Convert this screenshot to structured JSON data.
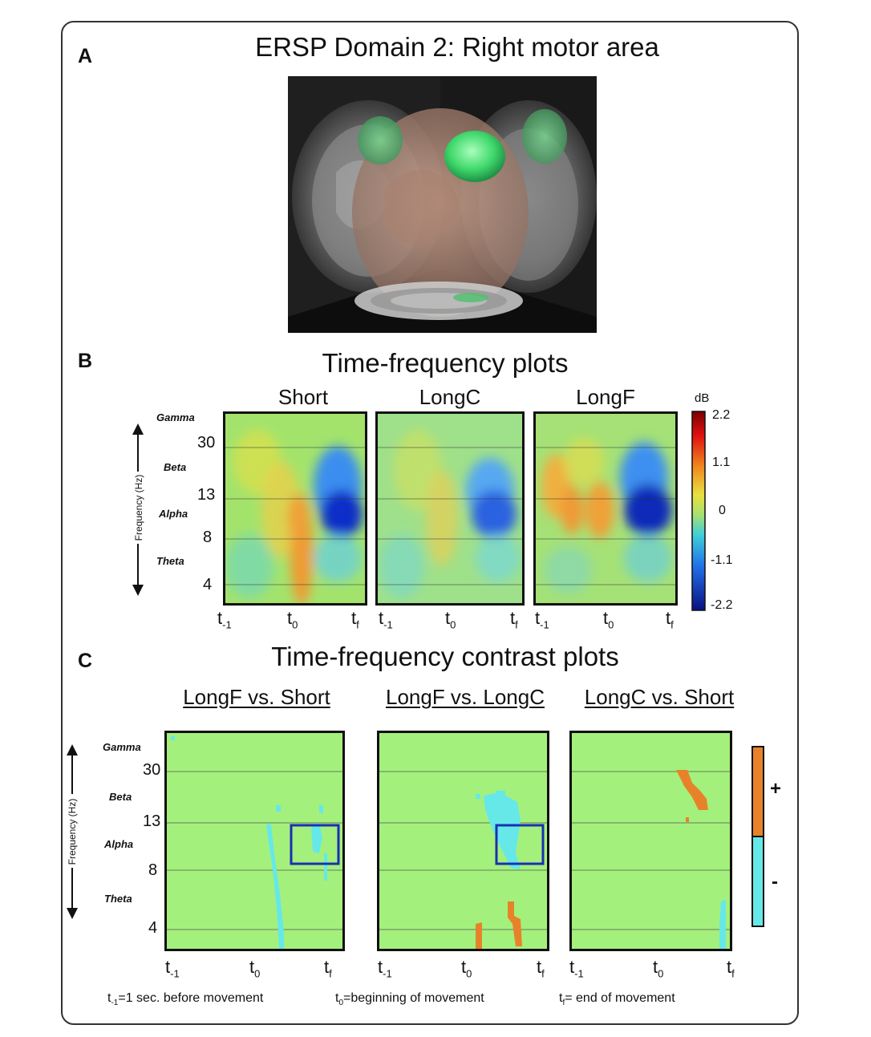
{
  "panel_a": {
    "letter": "A",
    "title": "ERSP Domain 2: Right motor area"
  },
  "panel_b": {
    "letter": "B",
    "title": "Time-frequency plots",
    "plots": [
      {
        "title": "Short"
      },
      {
        "title": "LongC"
      },
      {
        "title": "LongF"
      }
    ],
    "y_axis_label": "Frequency (Hz)",
    "bands": [
      "Gamma",
      "Beta",
      "Alpha",
      "Theta"
    ],
    "freq_ticks": [
      "30",
      "13",
      "8",
      "4"
    ],
    "colorbar": {
      "unit": "dB",
      "ticks": [
        "2.2",
        "1.1",
        "0",
        "-1.1",
        "-2.2"
      ]
    }
  },
  "panel_c": {
    "letter": "C",
    "title": "Time-frequency contrast plots",
    "plots": [
      {
        "title": "LongF vs. Short"
      },
      {
        "title": "LongF vs. LongC"
      },
      {
        "title": "LongC vs. Short"
      }
    ],
    "y_axis_label": "Frequency (Hz)",
    "bands": [
      "Gamma",
      "Beta",
      "Alpha",
      "Theta"
    ],
    "freq_ticks": [
      "30",
      "13",
      "8",
      "4"
    ],
    "legend": {
      "plus": "+",
      "minus": "-",
      "plus_color": "#e8822a",
      "minus_color": "#66e8e8"
    }
  },
  "time_ticks": {
    "t_base": "t",
    "sub_minus1": "-1",
    "sub_0": "0",
    "sub_f": "f"
  },
  "footnote": {
    "t_minus1": "=1 sec. before movement",
    "t0": "=beginning of movement",
    "tf": "= end of movement"
  },
  "colors": {
    "contrast_bg": "#a4f07c",
    "box": "#1a2fb5"
  }
}
